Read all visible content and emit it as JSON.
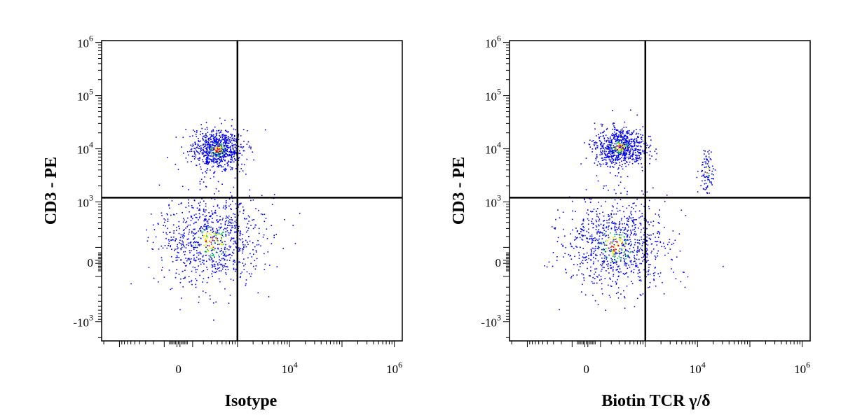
{
  "chart_data": [
    {
      "type": "scatter",
      "xlabel": "Isotype",
      "ylabel": "CD3 - PE",
      "x_scale": "biexponential",
      "y_scale": "biexponential",
      "x_ticks": [
        {
          "base": "0",
          "exp": "",
          "value": 0
        },
        {
          "base": "10",
          "exp": "4",
          "value": 10000
        },
        {
          "base": "10",
          "exp": "6",
          "value": 1000000
        }
      ],
      "y_ticks": [
        {
          "base": "-10",
          "exp": "3",
          "value": -1000
        },
        {
          "base": "0",
          "exp": "",
          "value": 0
        },
        {
          "base": "10",
          "exp": "3",
          "value": 1000
        },
        {
          "base": "10",
          "exp": "4",
          "value": 10000
        },
        {
          "base": "10",
          "exp": "5",
          "value": 100000
        },
        {
          "base": "10",
          "exp": "6",
          "value": 1000000
        }
      ],
      "quadrant_gate": {
        "x": 1000,
        "y": 1200
      },
      "populations": [
        {
          "x_center": 400,
          "y_center": 10000,
          "count": 800
        },
        {
          "x_center": 300,
          "y_center": 150,
          "count": 900
        }
      ],
      "density_colors": [
        "#0000ee",
        "#00bb44",
        "#eeee00",
        "#ff0000"
      ]
    },
    {
      "type": "scatter",
      "xlabel": "Biotin TCR γ/δ",
      "ylabel": "CD3 - PE",
      "x_scale": "biexponential",
      "y_scale": "biexponential",
      "x_ticks": [
        {
          "base": "0",
          "exp": "",
          "value": 0
        },
        {
          "base": "10",
          "exp": "4",
          "value": 10000
        },
        {
          "base": "10",
          "exp": "6",
          "value": 1000000
        }
      ],
      "y_ticks": [
        {
          "base": "-10",
          "exp": "3",
          "value": -1000
        },
        {
          "base": "0",
          "exp": "",
          "value": 0
        },
        {
          "base": "10",
          "exp": "3",
          "value": 1000
        },
        {
          "base": "10",
          "exp": "4",
          "value": 10000
        },
        {
          "base": "10",
          "exp": "5",
          "value": 100000
        },
        {
          "base": "10",
          "exp": "6",
          "value": 1000000
        }
      ],
      "quadrant_gate": {
        "x": 1000,
        "y": 1200
      },
      "populations": [
        {
          "x_center": 300,
          "y_center": 11000,
          "count": 750
        },
        {
          "x_center": 250,
          "y_center": 120,
          "count": 950
        },
        {
          "x_center": 15000,
          "y_center": 4000,
          "count": 90
        }
      ],
      "density_colors": [
        "#0000ee",
        "#00bb44",
        "#eeee00",
        "#ff0000"
      ]
    }
  ]
}
